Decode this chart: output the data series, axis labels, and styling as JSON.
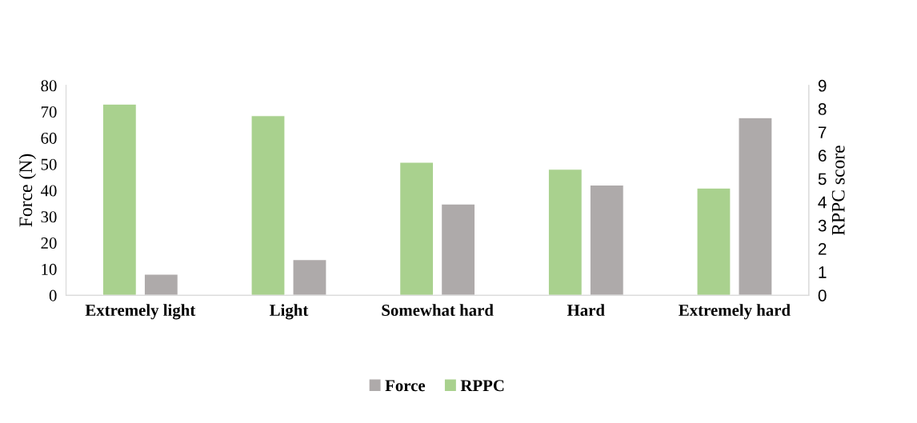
{
  "chart_data": {
    "type": "bar",
    "categories": [
      "Extremely light",
      "Light",
      "Somewhat hard",
      "Hard",
      "Extremely hard"
    ],
    "ylabel": "Force (N)",
    "y2label": "RPPC score",
    "series": [
      {
        "name": "RPPC",
        "color": "#a9d18e",
        "axis": "y2",
        "values": [
          8.2,
          7.7,
          5.7,
          5.4,
          4.6
        ]
      },
      {
        "name": "Force",
        "color": "#aeaaaa",
        "values": [
          8,
          13.6,
          34.8,
          42,
          67.7
        ]
      }
    ],
    "ylim": [
      0,
      80
    ],
    "yticks": [
      0,
      10,
      20,
      30,
      40,
      50,
      60,
      70,
      80
    ],
    "y2lim": [
      0,
      9
    ],
    "y2ticks": [
      0,
      1,
      2,
      3,
      4,
      5,
      6,
      7,
      8,
      9
    ],
    "grid": false,
    "legend": "bottom"
  }
}
